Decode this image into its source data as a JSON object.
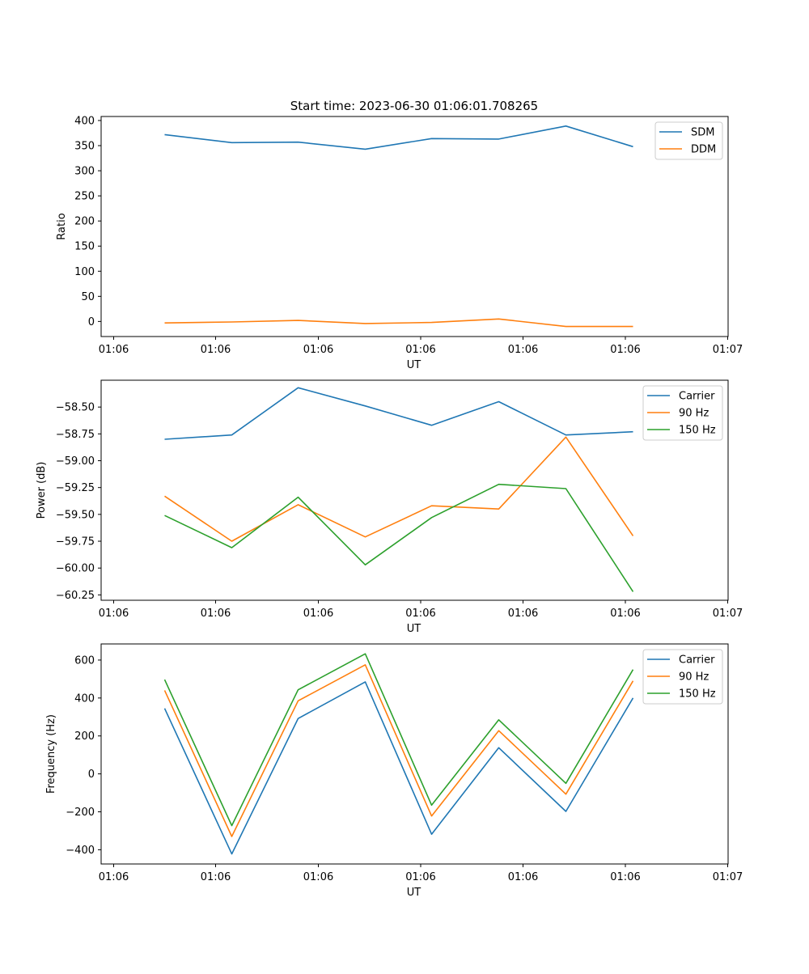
{
  "title": "Start time: 2023-06-30 01:06:01.708265",
  "colors": {
    "blue": "#1f77b4",
    "orange": "#ff7f0e",
    "green": "#2ca02c"
  },
  "chart_data": [
    {
      "type": "line",
      "xlabel": "UT",
      "ylabel": "Ratio",
      "x_tick_labels": [
        "01:06",
        "01:06",
        "01:06",
        "01:06",
        "01:06",
        "01:06",
        "01:07"
      ],
      "yticks": [
        "0",
        "50",
        "100",
        "150",
        "200",
        "250",
        "300",
        "350",
        "400"
      ],
      "ylim": [
        -30,
        408
      ],
      "legend": "top-right",
      "series": [
        {
          "name": "SDM",
          "color": "#1f77b4",
          "values": [
            372,
            356,
            357,
            343,
            364,
            363,
            389,
            348
          ]
        },
        {
          "name": "DDM",
          "color": "#ff7f0e",
          "values": [
            -3,
            -1,
            2,
            -4,
            -2,
            5,
            -10,
            -10
          ]
        }
      ]
    },
    {
      "type": "line",
      "xlabel": "UT",
      "ylabel": "Power (dB)",
      "x_tick_labels": [
        "01:06",
        "01:06",
        "01:06",
        "01:06",
        "01:06",
        "01:06",
        "01:07"
      ],
      "yticks": [
        "−60.25",
        "−60.00",
        "−59.75",
        "−59.50",
        "−59.25",
        "−59.00",
        "−58.75",
        "−58.50"
      ],
      "ylim": [
        -60.3,
        -58.25
      ],
      "legend": "top-right",
      "series": [
        {
          "name": "Carrier",
          "color": "#1f77b4",
          "values": [
            -58.8,
            -58.76,
            -58.32,
            -58.49,
            -58.67,
            -58.45,
            -58.76,
            -58.73
          ]
        },
        {
          "name": "90 Hz",
          "color": "#ff7f0e",
          "values": [
            -59.33,
            -59.75,
            -59.41,
            -59.71,
            -59.42,
            -59.45,
            -58.78,
            -59.7
          ]
        },
        {
          "name": "150 Hz",
          "color": "#2ca02c",
          "values": [
            -59.51,
            -59.81,
            -59.34,
            -59.97,
            -59.53,
            -59.22,
            -59.26,
            -60.22
          ]
        }
      ]
    },
    {
      "type": "line",
      "xlabel": "UT",
      "ylabel": "Frequency (Hz)",
      "x_tick_labels": [
        "01:06",
        "01:06",
        "01:06",
        "01:06",
        "01:06",
        "01:06",
        "01:07"
      ],
      "yticks": [
        "−400",
        "−200",
        "0",
        "200",
        "400",
        "600"
      ],
      "ylim": [
        -475,
        685
      ],
      "legend": "top-right",
      "series": [
        {
          "name": "Carrier",
          "color": "#1f77b4",
          "values": [
            345,
            -422,
            292,
            485,
            -318,
            138,
            -198,
            400
          ]
        },
        {
          "name": "90 Hz",
          "color": "#ff7f0e",
          "values": [
            440,
            -330,
            385,
            575,
            -222,
            228,
            -107,
            490
          ]
        },
        {
          "name": "150 Hz",
          "color": "#2ca02c",
          "values": [
            497,
            -273,
            443,
            633,
            -165,
            285,
            -50,
            550
          ]
        }
      ]
    }
  ]
}
